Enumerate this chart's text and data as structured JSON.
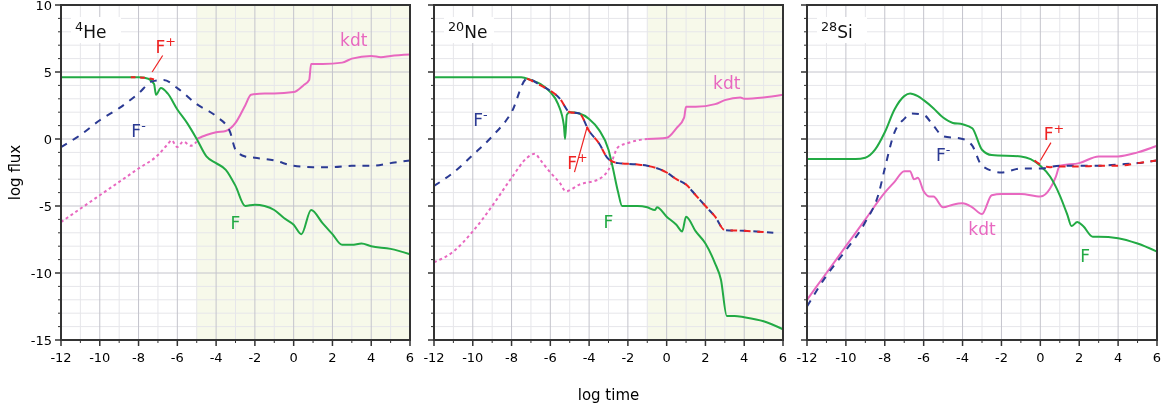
{
  "chart_data": [
    {
      "type": "line",
      "title": "$^{4}$He",
      "ylabel": "log flux",
      "xlim": [
        -12,
        6
      ],
      "ylim": [
        -15,
        10
      ],
      "xticks": [
        -12,
        -10,
        -8,
        -6,
        -4,
        -2,
        0,
        2,
        4,
        6
      ],
      "yticks": [
        -15,
        -10,
        -5,
        0,
        5,
        10
      ],
      "grid": true,
      "bands": [
        {
          "axis": "x",
          "from": -5,
          "to": 6,
          "color": "#f7f9ea"
        }
      ],
      "series": [
        {
          "color": "#e868c0",
          "line_style": "dotted",
          "x": [
            -12,
            -11,
            -10,
            -9,
            -8,
            -7,
            -6.5,
            -6.3,
            -6,
            -5.7,
            -5.3,
            -5
          ],
          "values": [
            -6.2,
            -5.2,
            -4.2,
            -3.2,
            -2.2,
            -1.2,
            -0.4,
            -0.1,
            -0.6,
            -0.2,
            -0.5,
            -0.2
          ]
        },
        {
          "name": "kdt",
          "color": "#e868c0",
          "line_style": "solid",
          "x": [
            -5,
            -4.5,
            -4,
            -3.5,
            -3,
            -2.5,
            -2.2,
            -1.5,
            -1,
            0,
            0.5,
            0.8,
            0.9,
            1.5,
            2.5,
            3,
            4,
            4.5,
            5,
            6
          ],
          "values": [
            0,
            0.3,
            0.5,
            0.6,
            1.2,
            2.5,
            3.3,
            3.4,
            3.4,
            3.5,
            4,
            4.4,
            5.6,
            5.6,
            5.7,
            6,
            6.2,
            6.1,
            6.2,
            6.3
          ]
        },
        {
          "name": "F",
          "color": "#22aa44",
          "line_style": "solid",
          "x": [
            -12,
            -8,
            -7.5,
            -7.2,
            -7.1,
            -6.85,
            -6.5,
            -6,
            -5.5,
            -5,
            -4.5,
            -4,
            -3.5,
            -3,
            -2.5,
            -2,
            -1.5,
            -1,
            -0.5,
            0,
            0.4,
            0.9,
            1.5,
            2,
            2.5,
            3,
            3.5,
            4,
            5,
            6
          ],
          "values": [
            4.6,
            4.6,
            4.5,
            4.1,
            3.3,
            3.8,
            3.4,
            2.2,
            1.2,
            0,
            -1.3,
            -1.8,
            -2.3,
            -3.5,
            -5,
            -4.9,
            -5,
            -5.3,
            -5.9,
            -6.4,
            -7.1,
            -5.3,
            -6.3,
            -7.1,
            -7.9,
            -7.9,
            -7.8,
            -8,
            -8.2,
            -8.6
          ]
        },
        {
          "name": "F$^{-}$",
          "color": "#2b3a93",
          "line_style": "dashed",
          "x": [
            -12,
            -11,
            -10,
            -9,
            -8,
            -7.3,
            -6.7,
            -6,
            -5,
            -4,
            -3.3,
            -3,
            -2.5,
            -2,
            -1,
            0,
            1,
            2,
            3,
            4,
            5,
            6
          ],
          "values": [
            -0.6,
            0.3,
            1.4,
            2.3,
            3.4,
            4.3,
            4.4,
            3.8,
            2.6,
            1.7,
            0.6,
            -0.8,
            -1.3,
            -1.4,
            -1.6,
            -2,
            -2.1,
            -2.1,
            -2,
            -2,
            -1.8,
            -1.6
          ]
        },
        {
          "name": "F$^{+}$",
          "color": "#ee2222",
          "line_style": "dashed",
          "x": [
            -8.4,
            -8,
            -7.6,
            -7.2
          ],
          "values": [
            4.6,
            4.6,
            4.55,
            4.45
          ]
        }
      ]
    },
    {
      "type": "line",
      "title": "$^{20}$Ne",
      "xlabel": "log time",
      "xlim": [
        -12,
        6
      ],
      "ylim": [
        -15,
        10
      ],
      "xticks": [
        -12,
        -10,
        -8,
        -6,
        -4,
        -2,
        0,
        2,
        4,
        6
      ],
      "yticks": [
        -15,
        -10,
        -5,
        0,
        5,
        10
      ],
      "grid": true,
      "tick_labels": "x",
      "bands": [
        {
          "axis": "x",
          "from": -1,
          "to": 6,
          "color": "#f7f9ea"
        }
      ],
      "series": [
        {
          "color": "#e868c0",
          "line_style": "dotted",
          "x": [
            -12,
            -11,
            -10,
            -9,
            -8,
            -7.2,
            -6.8,
            -6.5,
            -6,
            -5.5,
            -5.2,
            -4.5,
            -3.5,
            -3,
            -2.5,
            -2,
            -1.5,
            -1
          ],
          "values": [
            -9.2,
            -8.4,
            -6.9,
            -5,
            -2.9,
            -1.4,
            -1.1,
            -1.6,
            -2.5,
            -3.3,
            -3.9,
            -3.4,
            -3,
            -2.3,
            -0.6,
            -0.3,
            -0.1,
            0
          ]
        },
        {
          "name": "kdt",
          "color": "#e868c0",
          "line_style": "solid",
          "x": [
            -1,
            0,
            0.5,
            0.9,
            1,
            1.5,
            2.5,
            3,
            3.8,
            4,
            5,
            6
          ],
          "values": [
            0,
            0.1,
            0.8,
            1.6,
            2.4,
            2.4,
            2.6,
            2.9,
            3.1,
            3,
            3.1,
            3.3
          ]
        },
        {
          "name": "F",
          "color": "#22aa44",
          "line_style": "solid",
          "x": [
            -12,
            -7.5,
            -7,
            -6.5,
            -6,
            -5.6,
            -5.3,
            -5.24,
            -5.15,
            -5,
            -4.5,
            -4,
            -3.5,
            -3,
            -2.8,
            -2.5,
            -2.3,
            -1.5,
            -1,
            -0.6,
            -0.5,
            0,
            0.5,
            0.8,
            1,
            1.5,
            2,
            2.5,
            2.8,
            3.1,
            3.5,
            4,
            5,
            6
          ],
          "values": [
            4.6,
            4.6,
            4.4,
            4.1,
            3.5,
            2.6,
            1,
            0,
            1.8,
            2,
            1.9,
            1.5,
            0.7,
            -0.8,
            -2,
            -4,
            -5,
            -5,
            -5.1,
            -5.3,
            -5.1,
            -5.8,
            -6.4,
            -6.9,
            -5.8,
            -6.9,
            -7.8,
            -9.3,
            -10.5,
            -13.2,
            -13.2,
            -13.3,
            -13.6,
            -14.2
          ]
        },
        {
          "name": "F$^{-}$",
          "color": "#2b3a93",
          "line_style": "dashed",
          "x": [
            -12,
            -11,
            -10,
            -9,
            -8,
            -7.2,
            -6.5,
            -5.5,
            -5,
            -4.5,
            -4,
            -3.5,
            -3,
            -2.5,
            -1.5,
            -1,
            0,
            0.5,
            1,
            1.5,
            2,
            2.5,
            3,
            4,
            5.5
          ],
          "values": [
            -3.5,
            -2.5,
            -1.2,
            0.2,
            2,
            4.5,
            4,
            3,
            2,
            1.9,
            0.6,
            -0.3,
            -1.5,
            -1.8,
            -1.9,
            -2,
            -2.5,
            -3,
            -3.4,
            -4.2,
            -5,
            -5.8,
            -6.8,
            -6.85,
            -7
          ]
        },
        {
          "name": "F$^{+}$",
          "color": "#ee2222",
          "line_style": "dashed",
          "x": [
            -7.2,
            -6.5,
            -5.5,
            -5,
            -4.5,
            -4,
            -3.5,
            -3,
            -2.5,
            -1.5,
            -1,
            0,
            0.5,
            1,
            1.5,
            2,
            2.5,
            3,
            4,
            5
          ],
          "values": [
            4.5,
            4,
            3,
            2,
            1.9,
            0.6,
            -0.3,
            -1.5,
            -1.8,
            -1.9,
            -2,
            -2.5,
            -3,
            -3.4,
            -4.2,
            -5,
            -5.8,
            -6.8,
            -6.85,
            -6.95
          ]
        }
      ]
    },
    {
      "type": "line",
      "title": "$^{28}$Si",
      "xlim": [
        -12,
        6
      ],
      "ylim": [
        -15,
        10
      ],
      "xticks": [
        -12,
        -10,
        -8,
        -6,
        -4,
        -2,
        0,
        2,
        4,
        6
      ],
      "yticks": [
        -15,
        -10,
        -5,
        0,
        5,
        10
      ],
      "grid": true,
      "tick_labels": "x",
      "series": [
        {
          "name": "kdt",
          "color": "#e868c0",
          "line_style": "solid",
          "x": [
            -12,
            -11,
            -10,
            -9,
            -8,
            -7.5,
            -7,
            -6.7,
            -6.5,
            -6.3,
            -6,
            -5.7,
            -5.5,
            -5,
            -4.5,
            -4,
            -3.5,
            -3,
            -2.5,
            -2,
            -1,
            0,
            0.5,
            0.8,
            1,
            2,
            3,
            4,
            5,
            6
          ],
          "values": [
            -12,
            -10,
            -8,
            -6,
            -4,
            -3.2,
            -2.4,
            -2.4,
            -3,
            -2.9,
            -3.9,
            -4.3,
            -4.3,
            -5.1,
            -4.9,
            -4.8,
            -5.1,
            -5.6,
            -4.2,
            -4.1,
            -4.1,
            -4.3,
            -3.7,
            -2.8,
            -2,
            -1.8,
            -1.3,
            -1.3,
            -1,
            -0.5
          ]
        },
        {
          "name": "F",
          "color": "#22aa44",
          "line_style": "solid",
          "x": [
            -12,
            -9.5,
            -9,
            -8.5,
            -8,
            -7.5,
            -7,
            -6.7,
            -6.3,
            -6,
            -5.5,
            -5,
            -4.5,
            -4,
            -3.5,
            -3,
            -2.5,
            -1,
            -0.5,
            0,
            0.5,
            1,
            1.4,
            1.6,
            1.9,
            2.2,
            2.7,
            3,
            4,
            5,
            6
          ],
          "values": [
            -1.5,
            -1.5,
            -1.4,
            -0.8,
            0.5,
            2.2,
            3.2,
            3.4,
            3.2,
            2.9,
            2.3,
            1.6,
            1.2,
            1.1,
            0.8,
            -0.8,
            -1.2,
            -1.3,
            -1.5,
            -2,
            -2.8,
            -4.2,
            -5.7,
            -6.5,
            -6.2,
            -6.5,
            -7.3,
            -7.3,
            -7.4,
            -7.8,
            -8.4
          ]
        },
        {
          "name": "F$^{-}$",
          "color": "#2b3a93",
          "line_style": "dashed",
          "x": [
            -12,
            -11,
            -10,
            -9,
            -8.3,
            -8,
            -7.5,
            -7,
            -6.6,
            -6,
            -5.5,
            -5,
            -4,
            -3.5,
            -3,
            -2,
            -1,
            0,
            1,
            2,
            3,
            4,
            5,
            6
          ],
          "values": [
            -12.5,
            -10.2,
            -8.3,
            -6.2,
            -4,
            -2.2,
            0.5,
            1.5,
            1.9,
            1.8,
            1,
            0.2,
            0,
            -0.5,
            -2,
            -2.5,
            -2.2,
            -2.2,
            -2,
            -2,
            -2,
            -1.9,
            -1.8,
            -1.6
          ]
        },
        {
          "name": "F$^{+}$",
          "color": "#ee2222",
          "line_style": "dashed",
          "x": [
            -0.3,
            0,
            0.5,
            1,
            2,
            3,
            4,
            5,
            6
          ],
          "values": [
            -1.6,
            -1.9,
            -2.1,
            -2.05,
            -2.05,
            -2,
            -2,
            -1.8,
            -1.6
          ]
        }
      ]
    }
  ]
}
